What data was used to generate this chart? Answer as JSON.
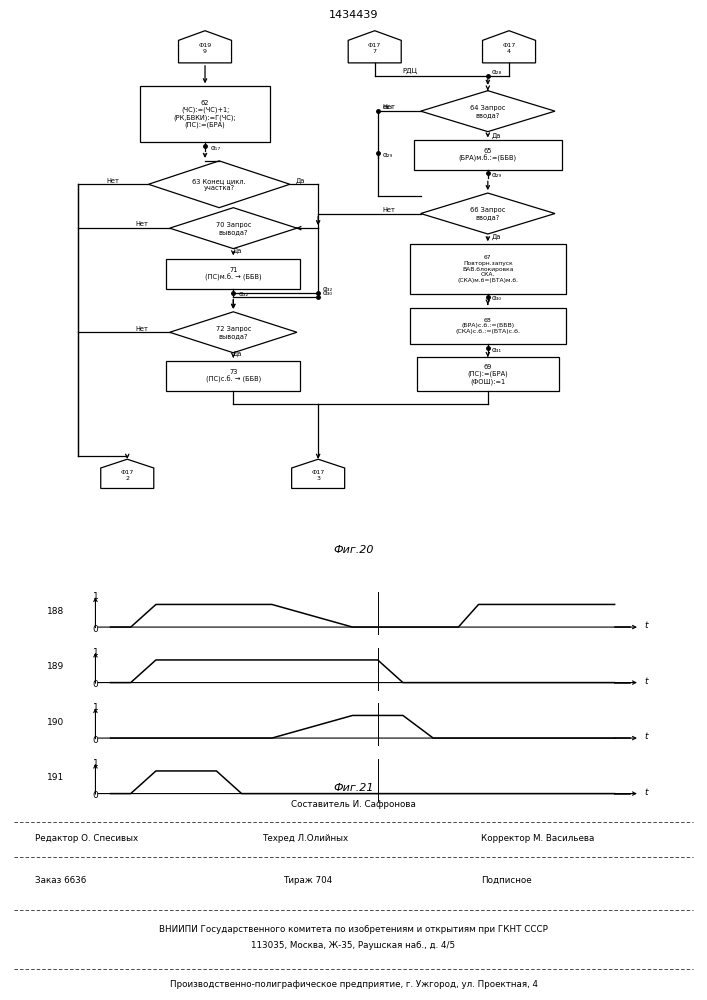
{
  "title": "1434439",
  "fig21_label": "Фиг.21",
  "fig20_label": "Фиг.20",
  "signals": {
    "labels": [
      "188",
      "189",
      "190",
      "191"
    ],
    "waveforms": [
      [
        0,
        0.4,
        0.9,
        2.1,
        2.6,
        3.2,
        4.8,
        5.3,
        5.8,
        6.9,
        7.3,
        7.8,
        10
      ],
      [
        0,
        0,
        1,
        1,
        1,
        1,
        0,
        0,
        0,
        0,
        1,
        1,
        1
      ],
      [
        0,
        0.4,
        0.9,
        5.3,
        5.8,
        6.4,
        10
      ],
      [
        0,
        0,
        1,
        1,
        0,
        0,
        0
      ],
      [
        0,
        2.1,
        2.6,
        3.2,
        4.8,
        5.3,
        5.8,
        6.4,
        10
      ],
      [
        0,
        0,
        0,
        0,
        1,
        1,
        1,
        0,
        0
      ],
      [
        0,
        0.4,
        0.9,
        2.1,
        2.6,
        3.2,
        10
      ],
      [
        0,
        0,
        1,
        1,
        0,
        0,
        0
      ]
    ]
  },
  "footer": {
    "line1_center": "Составитель И. Сафронова",
    "line2_left": "Редактор О. Спесивых",
    "line2_mid": "Техред Л.Олийных",
    "line2_right": "Корректор М. Васильева",
    "line3_left": "Заказ 6636",
    "line3_mid": "Тираж 704",
    "line3_right": "Подписное",
    "line4": "ВНИИПИ Государственного комитета по изобретениям и открытиям при ГКНТ СССР",
    "line5": "113035, Москва, Ж-35, Раушская наб., д. 4/5",
    "line6": "Производственно-полиграфическое предприятие, г. Ужгород, ул. Проектная, 4"
  }
}
